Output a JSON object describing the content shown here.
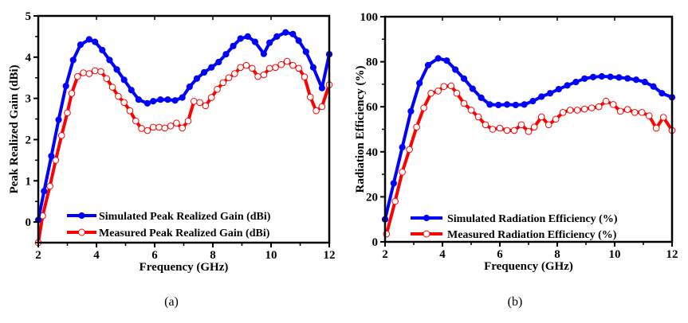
{
  "figure": {
    "captions": [
      "(a)",
      "(b)"
    ]
  },
  "chart_data": [
    {
      "type": "line",
      "panel": "a",
      "title": "",
      "xlabel": "Frequency (GHz)",
      "ylabel": "Peak Realized Gain (dBi)",
      "xlim": [
        2,
        12
      ],
      "ylim": [
        -0.5,
        5
      ],
      "xticks": [
        2,
        4,
        6,
        8,
        10,
        12
      ],
      "yticks": [
        0,
        1,
        2,
        3,
        4,
        5
      ],
      "grid": false,
      "legend_position": "bottom-center",
      "series": [
        {
          "name": "Simulated Peak Realized Gain (dBi)",
          "color": "#0000ff",
          "marker": "filled-circle",
          "x": [
            2.0,
            2.2,
            2.45,
            2.7,
            2.95,
            3.2,
            3.45,
            3.75,
            3.95,
            4.2,
            4.45,
            4.7,
            4.95,
            5.2,
            5.45,
            5.75,
            5.95,
            6.2,
            6.45,
            6.7,
            6.95,
            7.2,
            7.45,
            7.7,
            7.95,
            8.2,
            8.45,
            8.7,
            8.95,
            9.2,
            9.45,
            9.75,
            9.95,
            10.2,
            10.5,
            10.75,
            10.95,
            11.2,
            11.45,
            11.75,
            12.0
          ],
          "y": [
            0.05,
            0.75,
            1.6,
            2.48,
            3.3,
            3.93,
            4.3,
            4.43,
            4.37,
            4.17,
            3.93,
            3.7,
            3.45,
            3.2,
            2.97,
            2.88,
            2.93,
            2.97,
            2.97,
            2.95,
            3.02,
            3.28,
            3.48,
            3.63,
            3.75,
            3.88,
            4.07,
            4.27,
            4.45,
            4.5,
            4.37,
            4.08,
            4.35,
            4.5,
            4.6,
            4.56,
            4.4,
            4.13,
            3.75,
            3.25,
            4.07
          ]
        },
        {
          "name": "Measured Peak Realized Gain (dBi)",
          "color": "#ff0000",
          "marker": "open-circle",
          "x": [
            2.0,
            2.15,
            2.4,
            2.6,
            2.8,
            3.0,
            3.15,
            3.35,
            3.55,
            3.75,
            3.95,
            4.15,
            4.35,
            4.55,
            4.75,
            4.95,
            5.15,
            5.35,
            5.55,
            5.75,
            5.95,
            6.15,
            6.35,
            6.55,
            6.75,
            6.95,
            7.15,
            7.35,
            7.55,
            7.75,
            7.95,
            8.15,
            8.35,
            8.55,
            8.75,
            8.95,
            9.15,
            9.35,
            9.55,
            9.75,
            9.95,
            10.15,
            10.35,
            10.55,
            10.75,
            10.95,
            11.15,
            11.35,
            11.55,
            11.75,
            12.0
          ],
          "y": [
            -0.5,
            0.15,
            0.87,
            1.5,
            2.1,
            2.65,
            3.12,
            3.53,
            3.62,
            3.6,
            3.67,
            3.65,
            3.48,
            3.27,
            3.05,
            2.9,
            2.7,
            2.45,
            2.27,
            2.22,
            2.3,
            2.3,
            2.28,
            2.33,
            2.4,
            2.28,
            2.45,
            2.93,
            2.9,
            2.82,
            3.02,
            3.22,
            3.38,
            3.5,
            3.6,
            3.75,
            3.8,
            3.73,
            3.53,
            3.57,
            3.73,
            3.75,
            3.82,
            3.9,
            3.8,
            3.73,
            3.52,
            3.03,
            2.7,
            2.8,
            3.33
          ]
        }
      ]
    },
    {
      "type": "line",
      "panel": "b",
      "title": "",
      "xlabel": "Frequency (GHz)",
      "ylabel": "Radiation Efficiency (%)",
      "xlim": [
        2,
        12
      ],
      "ylim": [
        0,
        100
      ],
      "xticks": [
        2,
        4,
        6,
        8,
        10,
        12
      ],
      "yticks": [
        0,
        20,
        40,
        60,
        80,
        100
      ],
      "grid": false,
      "legend_position": "bottom-center",
      "series": [
        {
          "name": "Simulated Radiation Efficiency (%)",
          "color": "#0000ff",
          "marker": "filled-circle",
          "x": [
            2.0,
            2.3,
            2.6,
            2.9,
            3.2,
            3.5,
            3.85,
            4.15,
            4.45,
            4.75,
            5.05,
            5.35,
            5.65,
            5.95,
            6.25,
            6.55,
            6.85,
            7.15,
            7.45,
            7.75,
            8.05,
            8.35,
            8.65,
            8.95,
            9.25,
            9.55,
            9.85,
            10.15,
            10.45,
            10.75,
            11.05,
            11.35,
            11.65,
            12.0
          ],
          "y": [
            10,
            26,
            42,
            58,
            70.5,
            78.5,
            81.5,
            80.5,
            76.5,
            72.5,
            68,
            64,
            61,
            60.8,
            61,
            60.8,
            61,
            62.5,
            64.5,
            66,
            67.8,
            69.5,
            71,
            72.5,
            73.2,
            73.5,
            73.3,
            73,
            72.6,
            72,
            71,
            69,
            66,
            64.2
          ]
        },
        {
          "name": "Measured Radiation Efficiency (%)",
          "color": "#ff0000",
          "marker": "open-circle",
          "x": [
            2.05,
            2.35,
            2.6,
            2.85,
            3.1,
            3.35,
            3.6,
            3.85,
            4.05,
            4.3,
            4.5,
            4.75,
            5.0,
            5.25,
            5.5,
            5.75,
            6.0,
            6.25,
            6.5,
            6.75,
            7.0,
            7.2,
            7.45,
            7.7,
            7.95,
            8.2,
            8.45,
            8.7,
            8.95,
            9.2,
            9.45,
            9.7,
            9.95,
            10.2,
            10.45,
            10.7,
            10.95,
            11.2,
            11.45,
            11.7,
            12.0
          ],
          "y": [
            3.5,
            18,
            31,
            41,
            51,
            59.5,
            66,
            67,
            69,
            69.3,
            66,
            61.5,
            58.5,
            55.5,
            52,
            50,
            50.5,
            49.5,
            49.5,
            52,
            49,
            51,
            55.5,
            52,
            54.5,
            57.5,
            58.5,
            58.5,
            59,
            59.5,
            60,
            62.5,
            61,
            58,
            58.8,
            57.5,
            57.5,
            56,
            50.5,
            55.3,
            49.5
          ]
        }
      ]
    }
  ]
}
